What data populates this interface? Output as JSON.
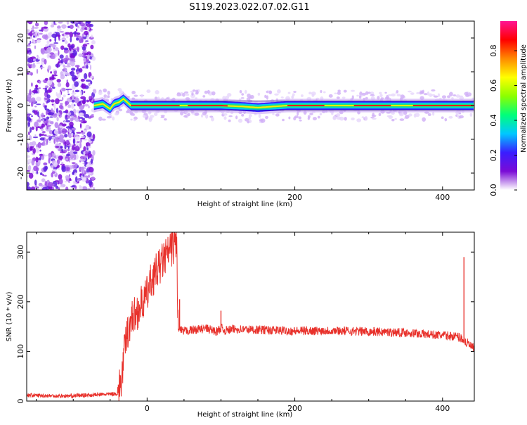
{
  "page": {
    "title": "S119.2023.022.07.02.G11"
  },
  "chart_data": [
    {
      "type": "heatmap",
      "id": "spectrogram",
      "title": "S119.2023.022.07.02.G11",
      "xlabel": "Height of straight line (km)",
      "ylabel": "Frequency (Hz)",
      "xlim": [
        -163,
        443
      ],
      "ylim": [
        -25,
        25
      ],
      "xticks": [
        0,
        200,
        400
      ],
      "yticks": [
        -20,
        -10,
        0,
        10,
        20
      ],
      "grid": false,
      "noise_region_x": [
        -163,
        -72
      ],
      "signal_line": {
        "x": [
          -72,
          -60,
          -50,
          -45,
          -38,
          -32,
          -27,
          -22,
          0,
          45,
          50,
          100,
          130,
          150,
          170,
          190,
          220,
          300,
          443
        ],
        "y": [
          0,
          0.5,
          -1,
          0.5,
          1,
          2,
          1,
          0,
          0,
          0,
          0,
          0,
          -0.3,
          -0.6,
          -0.3,
          0,
          0,
          0,
          0
        ]
      },
      "colorbar": {
        "label": "Normalized spectral amplitude",
        "range": [
          0,
          0.97
        ],
        "ticks": [
          0.0,
          0.2,
          0.4,
          0.6,
          0.8
        ],
        "colors": [
          "#ffffff",
          "#7a0bd6",
          "#3a1eff",
          "#00c8ff",
          "#00ff7a",
          "#8cff00",
          "#ffff00",
          "#ff8a00",
          "#ff0000",
          "#ff1493"
        ]
      }
    },
    {
      "type": "line",
      "id": "snr",
      "title": "",
      "xlabel": "Height of straight line (km)",
      "ylabel": "SNR (10 * v/v)",
      "xlim": [
        -163,
        443
      ],
      "ylim": [
        0,
        340
      ],
      "xticks": [
        0,
        200,
        400
      ],
      "yticks": [
        0,
        100,
        200,
        300
      ],
      "grid": false,
      "series": [
        {
          "color": "#e8312b",
          "x": [
            -163,
            -140,
            -110,
            -80,
            -50,
            -40,
            -35,
            -30,
            -25,
            -20,
            -15,
            -10,
            -5,
            0,
            5,
            10,
            15,
            20,
            25,
            30,
            35,
            40,
            42,
            44,
            46,
            48,
            60,
            80,
            95,
            100,
            105,
            120,
            160,
            200,
            250,
            300,
            350,
            400,
            420,
            428,
            430,
            432,
            440,
            443
          ],
          "y": [
            12,
            11,
            10,
            12,
            14,
            15,
            40,
            110,
            150,
            170,
            175,
            190,
            200,
            215,
            240,
            255,
            265,
            280,
            290,
            300,
            312,
            325,
            140,
            145,
            142,
            140,
            143,
            146,
            140,
            148,
            142,
            145,
            143,
            141,
            142,
            140,
            138,
            132,
            130,
            125,
            120,
            118,
            108,
            105
          ]
        }
      ],
      "spikes": [
        {
          "x": 44,
          "y": 205
        },
        {
          "x": 100,
          "y": 182
        },
        {
          "x": 429,
          "y": 290
        }
      ]
    }
  ]
}
